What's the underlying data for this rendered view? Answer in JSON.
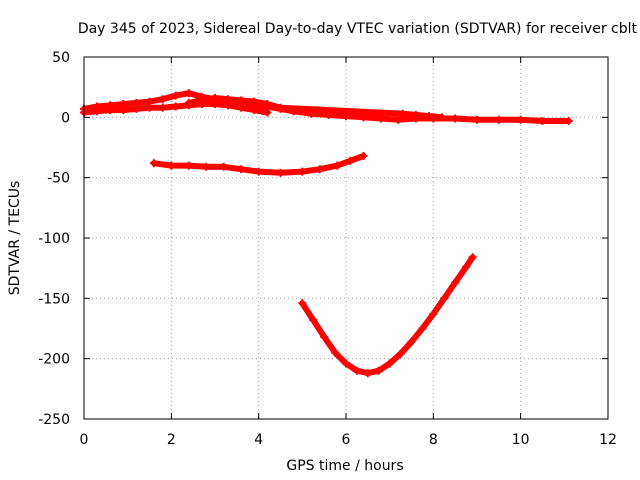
{
  "chart_data": {
    "type": "scatter",
    "title": "Day 345 of 2023, Sidereal Day-to-day VTEC variation (SDTVAR) for receiver cblt",
    "xlabel": "GPS time / hours",
    "ylabel": "SDTVAR / TECUs",
    "xlim": [
      0,
      12
    ],
    "ylim": [
      -250,
      50
    ],
    "x_ticks": [
      "0",
      "2",
      "4",
      "6",
      "8",
      "10",
      "12"
    ],
    "y_ticks": [
      "50",
      "0",
      "-50",
      "-100",
      "-150",
      "-200",
      "-250"
    ],
    "grid": true,
    "marker": "plus",
    "series_color": "#ff0000",
    "series": [
      {
        "points": [
          [
            0.0,
            7
          ],
          [
            0.3,
            9
          ],
          [
            0.6,
            10
          ],
          [
            0.9,
            11
          ],
          [
            1.2,
            12
          ],
          [
            1.5,
            13
          ],
          [
            1.8,
            15
          ],
          [
            2.1,
            18
          ],
          [
            2.4,
            20
          ],
          [
            2.7,
            17
          ],
          [
            3.0,
            15
          ],
          [
            3.3,
            13
          ],
          [
            3.6,
            12
          ],
          [
            3.9,
            10
          ],
          [
            4.2,
            9
          ],
          [
            4.5,
            7
          ],
          [
            4.8,
            5
          ],
          [
            5.2,
            3
          ],
          [
            5.6,
            2
          ],
          [
            6.0,
            1
          ],
          [
            6.4,
            0
          ],
          [
            6.8,
            -1
          ],
          [
            7.2,
            -2
          ],
          [
            7.6,
            -1
          ],
          [
            8.0,
            -1
          ],
          [
            8.5,
            -1
          ],
          [
            9.0,
            -2
          ],
          [
            9.5,
            -2
          ],
          [
            10.0,
            -2
          ],
          [
            10.5,
            -3
          ],
          [
            11.1,
            -3
          ]
        ]
      },
      {
        "points": [
          [
            0.0,
            4
          ],
          [
            0.3,
            5
          ],
          [
            0.6,
            6
          ],
          [
            0.9,
            6
          ],
          [
            1.2,
            7
          ],
          [
            1.5,
            8
          ],
          [
            1.8,
            8
          ],
          [
            2.1,
            9
          ],
          [
            2.4,
            10
          ],
          [
            2.7,
            11
          ],
          [
            3.0,
            11
          ],
          [
            3.3,
            10
          ],
          [
            3.6,
            8
          ],
          [
            3.9,
            6
          ],
          [
            4.2,
            4
          ]
        ]
      },
      {
        "points": [
          [
            2.4,
            12
          ],
          [
            2.7,
            14
          ],
          [
            3.0,
            16
          ],
          [
            3.3,
            15
          ],
          [
            3.6,
            14
          ],
          [
            3.9,
            13
          ],
          [
            4.2,
            11
          ],
          [
            4.5,
            8
          ],
          [
            7.3,
            3
          ],
          [
            7.6,
            2
          ],
          [
            7.9,
            1
          ],
          [
            8.2,
            0
          ]
        ]
      },
      {
        "points": [
          [
            1.6,
            -38
          ],
          [
            2.0,
            -40
          ],
          [
            2.4,
            -40
          ],
          [
            2.8,
            -41
          ],
          [
            3.2,
            -41
          ],
          [
            3.6,
            -43
          ],
          [
            4.0,
            -45
          ],
          [
            4.5,
            -46
          ],
          [
            5.0,
            -45
          ],
          [
            5.4,
            -43
          ],
          [
            5.8,
            -40
          ],
          [
            6.1,
            -36
          ],
          [
            6.4,
            -32
          ]
        ]
      },
      {
        "points": [
          [
            5.0,
            -154
          ],
          [
            5.25,
            -168
          ],
          [
            5.5,
            -182
          ],
          [
            5.75,
            -195
          ],
          [
            6.0,
            -204
          ],
          [
            6.25,
            -210
          ],
          [
            6.5,
            -212
          ],
          [
            6.75,
            -210
          ],
          [
            7.0,
            -204
          ],
          [
            7.25,
            -196
          ],
          [
            7.5,
            -186
          ],
          [
            7.75,
            -175
          ],
          [
            8.0,
            -163
          ],
          [
            8.25,
            -150
          ],
          [
            8.5,
            -137
          ],
          [
            8.75,
            -124
          ],
          [
            8.9,
            -116
          ]
        ]
      }
    ]
  }
}
